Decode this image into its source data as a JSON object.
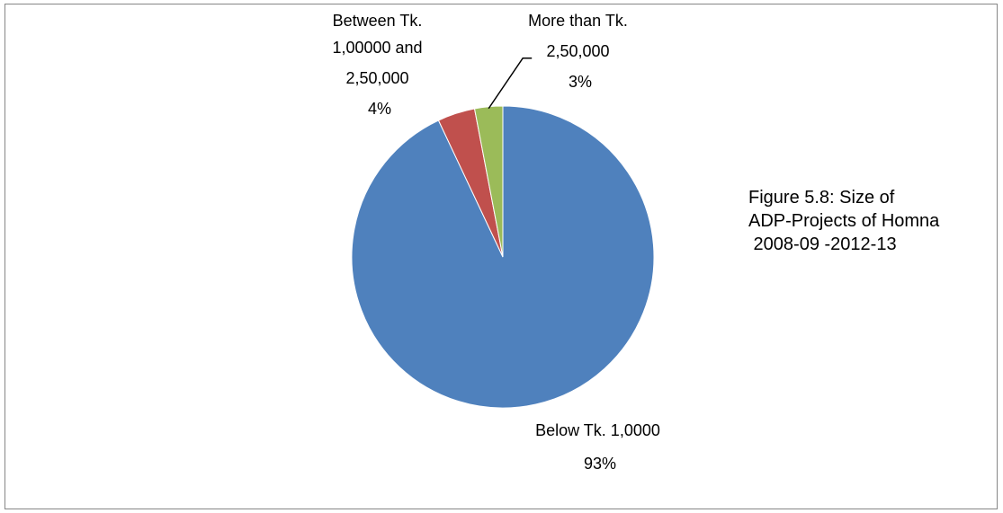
{
  "chart_data": {
    "type": "pie",
    "title_lines": [
      "Figure 5.8: Size of",
      "ADP-Projects of Homna",
      " 2008-09 -2012-13"
    ],
    "legend": "none",
    "start_angle_deg": 0,
    "direction": "clockwise",
    "slices": [
      {
        "label_lines": [
          "Below Tk. 1,0000"
        ],
        "value": 93,
        "percent_label": "93%",
        "color": "#4F81BD"
      },
      {
        "label_lines": [
          "Between Tk.",
          "1,00000 and",
          "2,50,000"
        ],
        "value": 4,
        "percent_label": "4%",
        "color": "#C0504D"
      },
      {
        "label_lines": [
          "More than Tk.",
          "2,50,000"
        ],
        "value": 3,
        "percent_label": "3%",
        "color": "#9BBB59"
      }
    ]
  }
}
